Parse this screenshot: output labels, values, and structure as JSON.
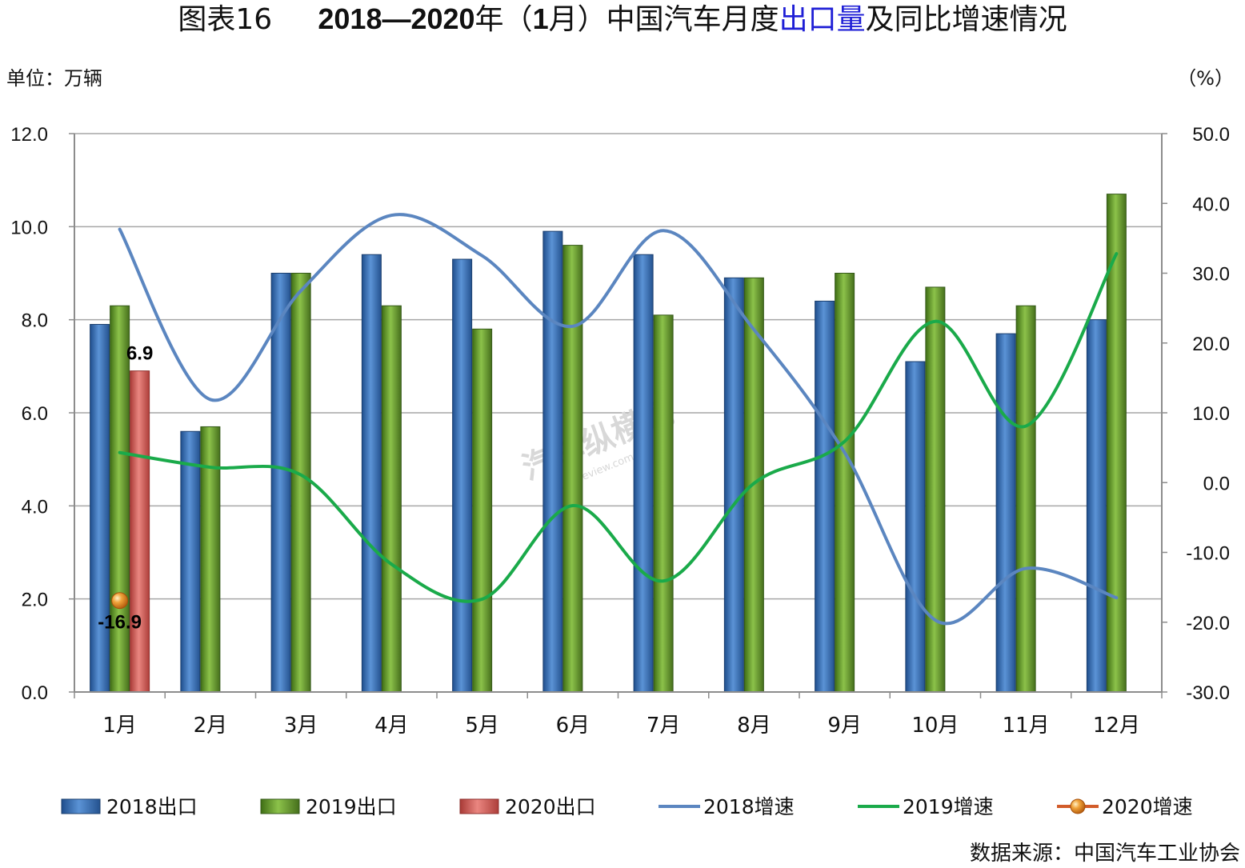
{
  "title": {
    "prefix": "图表16",
    "years": "2018—2020",
    "nian": "年（",
    "one": "1",
    "yue": "月）",
    "text1": "中国汽车月度",
    "highlight": "出口量",
    "text2": "及同比增速情况"
  },
  "unit_left": "单位：万辆",
  "unit_right": "（%）",
  "source": "数据来源：中国汽车工业协会",
  "watermark": {
    "main": "汽车纵横网",
    "sub": "autoreview.com.cn"
  },
  "colors": {
    "bar2018": "#3f73b8",
    "bar2019": "#6aa234",
    "bar2020": "#d9605c",
    "line2018": "#5b86c0",
    "line2019": "#1aaa4a",
    "marker2020": "#e8901e",
    "grid": "#a6a6a6"
  },
  "chart_data": {
    "type": "bar",
    "categories": [
      "1月",
      "2月",
      "3月",
      "4月",
      "5月",
      "6月",
      "7月",
      "8月",
      "9月",
      "10月",
      "11月",
      "12月"
    ],
    "y_left": {
      "min": 0,
      "max": 12,
      "step": 2,
      "ticks": [
        "0.0",
        "2.0",
        "4.0",
        "6.0",
        "8.0",
        "10.0",
        "12.0"
      ]
    },
    "y_right": {
      "min": -30,
      "max": 50,
      "step": 10,
      "ticks": [
        "-30.0",
        "-20.0",
        "-10.0",
        "0.0",
        "10.0",
        "20.0",
        "30.0",
        "40.0",
        "50.0"
      ]
    },
    "grid": true,
    "legend_position": "bottom",
    "bar_series": [
      {
        "name": "2018出口",
        "values": [
          7.9,
          5.6,
          9.0,
          9.4,
          9.3,
          9.9,
          9.4,
          8.9,
          8.4,
          7.1,
          7.7,
          8.0
        ]
      },
      {
        "name": "2019出口",
        "values": [
          8.3,
          5.7,
          9.0,
          8.3,
          7.8,
          9.6,
          8.1,
          8.9,
          9.0,
          8.7,
          8.3,
          10.7
        ]
      },
      {
        "name": "2020出口",
        "values": [
          6.9,
          null,
          null,
          null,
          null,
          null,
          null,
          null,
          null,
          null,
          null,
          null
        ]
      }
    ],
    "line_series": [
      {
        "name": "2018增速",
        "values": [
          36.3,
          11.9,
          27.5,
          38.3,
          32.5,
          22.4,
          36.1,
          21.9,
          4.3,
          -19.7,
          -12.3,
          -16.5
        ]
      },
      {
        "name": "2019增速",
        "values": [
          4.3,
          2.2,
          1.1,
          -11.7,
          -16.7,
          -3.3,
          -14.1,
          -0.1,
          5.9,
          23.1,
          8.1,
          32.8
        ]
      },
      {
        "name": "2020增速",
        "values": [
          -16.9,
          null,
          null,
          null,
          null,
          null,
          null,
          null,
          null,
          null,
          null,
          null
        ]
      }
    ],
    "data_labels": {
      "bar2020_jan": "6.9",
      "growth2020_jan": "-16.9"
    }
  }
}
